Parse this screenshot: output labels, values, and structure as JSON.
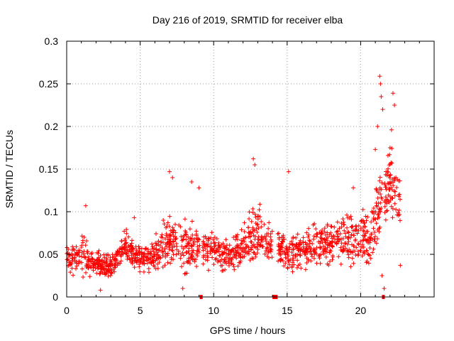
{
  "chart_data": {
    "type": "scatter",
    "title": "Day 216 of 2019, SRMTID for receiver elba",
    "xlabel": "GPS time / hours",
    "ylabel": "SRMTID / TECUs",
    "xlim": [
      0,
      25
    ],
    "ylim": [
      0,
      0.3
    ],
    "x_ticks": [
      "0",
      "5",
      "10",
      "15",
      "20"
    ],
    "y_ticks": [
      "0",
      "0.05",
      "0.1",
      "0.15",
      "0.2",
      "0.25",
      "0.3"
    ],
    "grid": true,
    "marker": "+",
    "color": "#ff0000",
    "envelope": {
      "hours": [
        0,
        1,
        2,
        3,
        4,
        5,
        6,
        7,
        8,
        9,
        10,
        11,
        12,
        13,
        14,
        15,
        16,
        17,
        18,
        19,
        20,
        20.5,
        21,
        21.5,
        22,
        22.7
      ],
      "center": [
        0.045,
        0.048,
        0.04,
        0.035,
        0.06,
        0.045,
        0.05,
        0.07,
        0.06,
        0.06,
        0.055,
        0.045,
        0.06,
        0.075,
        0.06,
        0.05,
        0.055,
        0.06,
        0.065,
        0.07,
        0.075,
        0.06,
        0.09,
        0.12,
        0.13,
        0.12
      ],
      "spread": [
        0.02,
        0.03,
        0.02,
        0.02,
        0.025,
        0.02,
        0.03,
        0.04,
        0.04,
        0.035,
        0.03,
        0.025,
        0.035,
        0.045,
        0.035,
        0.03,
        0.03,
        0.03,
        0.035,
        0.04,
        0.045,
        0.04,
        0.06,
        0.07,
        0.06,
        0.04
      ]
    },
    "peaks": [
      {
        "x": 1.3,
        "y": 0.107
      },
      {
        "x": 4.6,
        "y": 0.093
      },
      {
        "x": 7.0,
        "y": 0.147
      },
      {
        "x": 7.2,
        "y": 0.14
      },
      {
        "x": 8.5,
        "y": 0.135
      },
      {
        "x": 9.0,
        "y": 0.128
      },
      {
        "x": 12.7,
        "y": 0.162
      },
      {
        "x": 12.8,
        "y": 0.155
      },
      {
        "x": 15.1,
        "y": 0.147
      },
      {
        "x": 19.5,
        "y": 0.128
      },
      {
        "x": 21.0,
        "y": 0.173
      },
      {
        "x": 21.15,
        "y": 0.2
      },
      {
        "x": 21.3,
        "y": 0.259
      },
      {
        "x": 21.35,
        "y": 0.25
      },
      {
        "x": 21.4,
        "y": 0.235
      },
      {
        "x": 21.5,
        "y": 0.22
      },
      {
        "x": 22.0,
        "y": 0.175
      },
      {
        "x": 22.1,
        "y": 0.196
      },
      {
        "x": 22.2,
        "y": 0.239
      },
      {
        "x": 22.3,
        "y": 0.225
      },
      {
        "x": 22.4,
        "y": 0.14
      },
      {
        "x": 21.45,
        "y": 0.025
      },
      {
        "x": 21.6,
        "y": 0.01
      },
      {
        "x": 7.9,
        "y": 0.01
      },
      {
        "x": 2.3,
        "y": 0.008
      },
      {
        "x": 22.7,
        "y": 0.037
      }
    ],
    "gaps": [
      {
        "x_start": 9.05,
        "x_end": 9.25
      },
      {
        "x_start": 14.0,
        "x_end": 14.35
      },
      {
        "x_start": 21.45,
        "x_end": 21.6
      }
    ],
    "n_points": 1500
  }
}
